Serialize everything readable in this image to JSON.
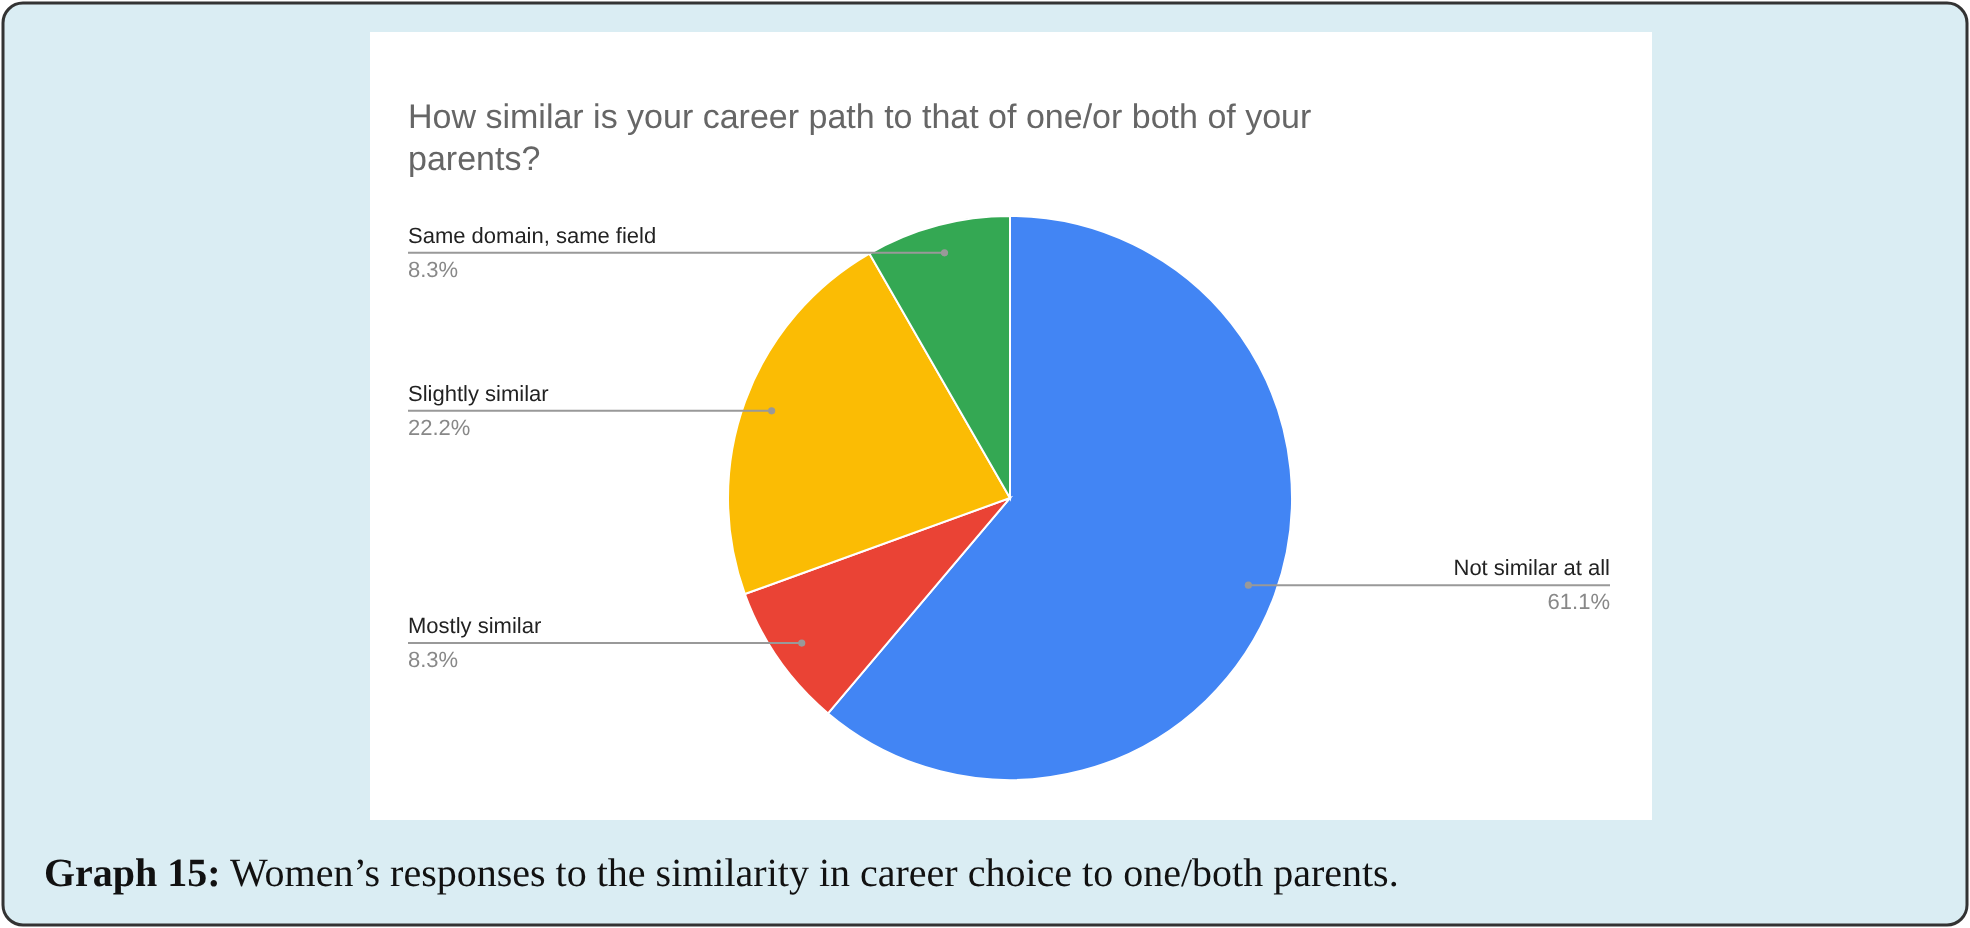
{
  "chart_data": {
    "type": "pie",
    "title": "How similar is your career path to that of one/or both of your parents?",
    "categories": [
      "Not similar at all",
      "Mostly similar",
      "Slightly similar",
      "Same domain, same field"
    ],
    "values": [
      61.1,
      8.3,
      22.2,
      8.3
    ],
    "colors": [
      "#4285f4",
      "#ea4335",
      "#fbbc04",
      "#34a853"
    ],
    "value_labels": [
      "61.1%",
      "8.3%",
      "22.2%",
      "8.3%"
    ],
    "annotations": [
      "Graph 15: Women’s responses to the similarity in career choice to one/both parents."
    ]
  }
}
